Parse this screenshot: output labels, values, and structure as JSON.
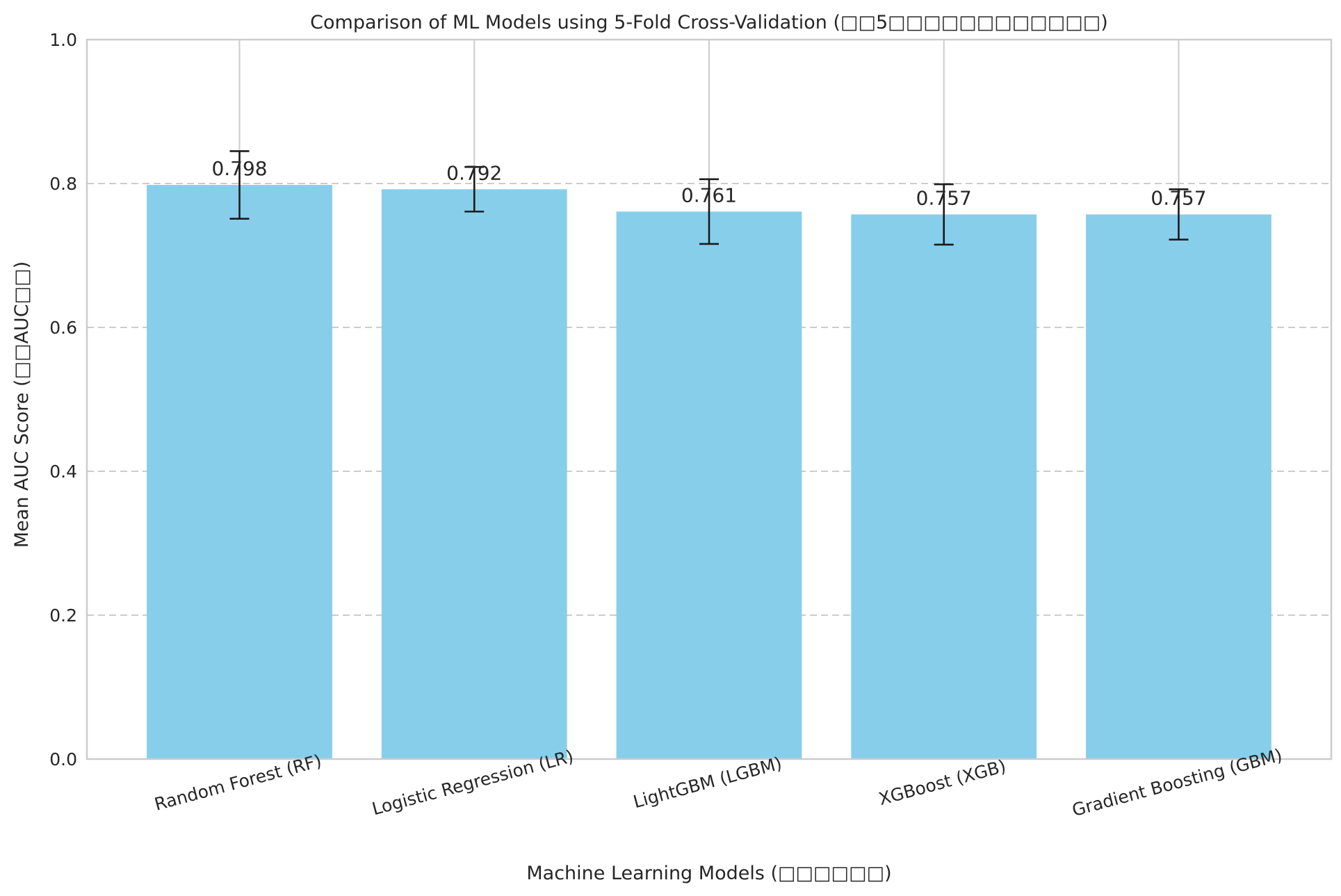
{
  "chart_data": {
    "type": "bar",
    "title": "Comparison of ML Models using 5-Fold Cross-Validation (□□5□□□□□□□□□□□□)",
    "xlabel": "Machine Learning Models (□□□□□□)",
    "ylabel": "Mean AUC Score (□□AUC□□)",
    "categories": [
      "Random Forest (RF)",
      "Logistic Regression (LR)",
      "LightGBM (LGBM)",
      "XGBoost (XGB)",
      "Gradient Boosting (GBM)"
    ],
    "values": [
      0.798,
      0.792,
      0.761,
      0.757,
      0.757
    ],
    "value_labels": [
      "0.798",
      "0.792",
      "0.761",
      "0.757",
      "0.757"
    ],
    "error": [
      0.047,
      0.031,
      0.045,
      0.042,
      0.035
    ],
    "ylim": [
      0,
      1.0
    ],
    "yticks": [
      0.0,
      0.2,
      0.4,
      0.6,
      0.8,
      1.0
    ],
    "ytick_labels": [
      "0.0",
      "0.2",
      "0.4",
      "0.6",
      "0.8",
      "1.0"
    ],
    "grid": true,
    "bar_color": "#87ceeb",
    "error_color": "#1a1a1a",
    "grid_color": "#cccccc",
    "spine_color": "#cccccc",
    "text_color": "#262626"
  }
}
